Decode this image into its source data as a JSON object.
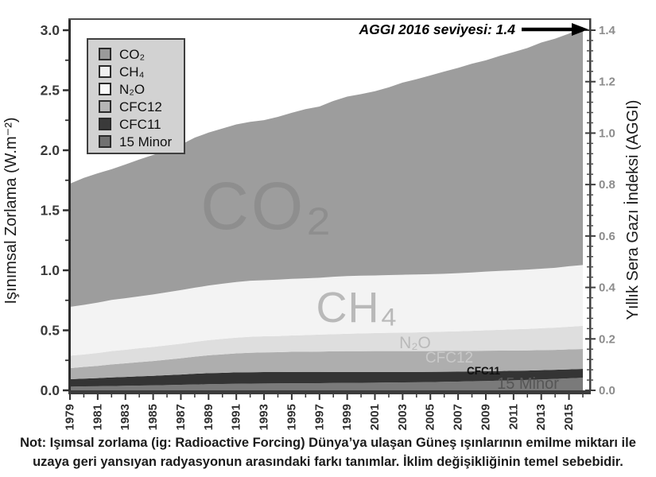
{
  "note": {
    "line1": "Not: Işımsal zorlama (ig: Radioactive Forcing) Dünya’ya ulaşan Güneş ışınlarının emilme miktarı ile",
    "line2": "uzaya geri yansıyan radyasyonun arasındaki farkı tanımlar. İklim değişikliğinin temel sebebidir."
  },
  "legend": {
    "items": [
      {
        "label": "CO₂",
        "swatch": "#9a9a9a"
      },
      {
        "label": "CH₄",
        "swatch": "#f0f0f0"
      },
      {
        "label": "N₂O",
        "swatch": "#fafafa"
      },
      {
        "label": "CFC12",
        "swatch": "#b5b5b5"
      },
      {
        "label": "CFC11",
        "swatch": "#3a3a3a"
      },
      {
        "label": "15 Minor",
        "swatch": "#717171"
      }
    ]
  },
  "chart_data": {
    "type": "area",
    "stacked": true,
    "title": "",
    "annotation": {
      "text": "AGGI 2016 seviyesi: 1.4",
      "points_to_right_axis_value": 1.4
    },
    "left_axis": {
      "label": "Işınımsal Zorlama (W.m⁻²)",
      "min": 0,
      "max": 3.1,
      "tick_labels": [
        "0.0",
        "0.5",
        "1.0",
        "1.5",
        "2.0",
        "2.5",
        "3.0"
      ],
      "minor_tick_step": 0.25
    },
    "right_axis": {
      "label": "Yıllık Sera Gazı İndeksi (AGGI)",
      "min": 0,
      "max": 1.4,
      "tick_labels": [
        "0.0",
        "0.2",
        "0.4",
        "0.6",
        "0.8",
        "1.0",
        "1.2",
        "1.4"
      ],
      "minor_tick_step": 0.04
    },
    "x_axis": {
      "tick_labels": [
        "1979",
        "1981",
        "1983",
        "1985",
        "1987",
        "1989",
        "1991",
        "1993",
        "1995",
        "1997",
        "1999",
        "2001",
        "2003",
        "2005",
        "2007",
        "2009",
        "2011",
        "2013",
        "2015"
      ]
    },
    "x_years": [
      1979,
      1980,
      1981,
      1982,
      1983,
      1984,
      1985,
      1986,
      1987,
      1988,
      1989,
      1990,
      1991,
      1992,
      1993,
      1994,
      1995,
      1996,
      1997,
      1998,
      1999,
      2000,
      2001,
      2002,
      2003,
      2004,
      2005,
      2006,
      2007,
      2008,
      2009,
      2010,
      2011,
      2012,
      2013,
      2014,
      2015,
      2016
    ],
    "stack_order_bottom_to_top": [
      "15 Minor",
      "CFC11",
      "CFC12",
      "N₂O",
      "CH₄",
      "CO₂"
    ],
    "series": [
      {
        "name": "CO₂",
        "color": "#9d9d9d",
        "values": [
          1.027,
          1.058,
          1.077,
          1.089,
          1.115,
          1.14,
          1.162,
          1.184,
          1.211,
          1.25,
          1.274,
          1.293,
          1.313,
          1.324,
          1.334,
          1.356,
          1.383,
          1.41,
          1.426,
          1.465,
          1.495,
          1.513,
          1.535,
          1.564,
          1.601,
          1.627,
          1.655,
          1.685,
          1.71,
          1.739,
          1.76,
          1.791,
          1.818,
          1.846,
          1.884,
          1.909,
          1.938,
          1.985
        ]
      },
      {
        "name": "CH₄",
        "color": "#f3f3f3",
        "values": [
          0.406,
          0.413,
          0.42,
          0.426,
          0.429,
          0.432,
          0.437,
          0.442,
          0.447,
          0.451,
          0.455,
          0.459,
          0.463,
          0.467,
          0.467,
          0.47,
          0.472,
          0.473,
          0.474,
          0.478,
          0.481,
          0.481,
          0.48,
          0.481,
          0.483,
          0.482,
          0.482,
          0.482,
          0.484,
          0.486,
          0.489,
          0.491,
          0.492,
          0.494,
          0.496,
          0.499,
          0.504,
          0.507
        ]
      },
      {
        "name": "N₂O",
        "color": "#dedede",
        "values": [
          0.104,
          0.104,
          0.107,
          0.111,
          0.113,
          0.116,
          0.118,
          0.119,
          0.121,
          0.123,
          0.126,
          0.129,
          0.131,
          0.133,
          0.134,
          0.134,
          0.136,
          0.139,
          0.141,
          0.143,
          0.145,
          0.148,
          0.15,
          0.152,
          0.153,
          0.156,
          0.159,
          0.161,
          0.164,
          0.167,
          0.17,
          0.173,
          0.176,
          0.179,
          0.182,
          0.185,
          0.189,
          0.193
        ]
      },
      {
        "name": "CFC12",
        "color": "#aeaeae",
        "values": [
          0.092,
          0.097,
          0.102,
          0.108,
          0.113,
          0.118,
          0.123,
          0.129,
          0.135,
          0.143,
          0.149,
          0.154,
          0.158,
          0.162,
          0.164,
          0.166,
          0.168,
          0.169,
          0.171,
          0.172,
          0.173,
          0.173,
          0.174,
          0.174,
          0.174,
          0.174,
          0.173,
          0.173,
          0.172,
          0.171,
          0.171,
          0.17,
          0.169,
          0.168,
          0.167,
          0.166,
          0.166,
          0.165
        ]
      },
      {
        "name": "CFC11",
        "color": "#343434",
        "values": [
          0.062,
          0.065,
          0.068,
          0.072,
          0.074,
          0.077,
          0.08,
          0.083,
          0.086,
          0.089,
          0.092,
          0.093,
          0.095,
          0.095,
          0.095,
          0.094,
          0.094,
          0.093,
          0.092,
          0.092,
          0.091,
          0.09,
          0.089,
          0.088,
          0.087,
          0.086,
          0.085,
          0.084,
          0.083,
          0.082,
          0.081,
          0.08,
          0.079,
          0.078,
          0.077,
          0.076,
          0.075,
          0.074
        ]
      },
      {
        "name": "15 Minor",
        "color": "#7a7a7a",
        "values": [
          0.031,
          0.033,
          0.034,
          0.036,
          0.038,
          0.04,
          0.041,
          0.044,
          0.046,
          0.049,
          0.051,
          0.053,
          0.055,
          0.056,
          0.057,
          0.058,
          0.059,
          0.059,
          0.06,
          0.061,
          0.062,
          0.063,
          0.064,
          0.065,
          0.066,
          0.067,
          0.069,
          0.071,
          0.073,
          0.076,
          0.078,
          0.081,
          0.084,
          0.087,
          0.091,
          0.095,
          0.1,
          0.105
        ]
      }
    ],
    "band_labels": [
      {
        "text": "CO₂"
      },
      {
        "text": "CH₄"
      },
      {
        "text": "N₂O"
      },
      {
        "text": "CFC12"
      },
      {
        "text": "CFC11"
      },
      {
        "text": "15 Minor"
      }
    ]
  }
}
